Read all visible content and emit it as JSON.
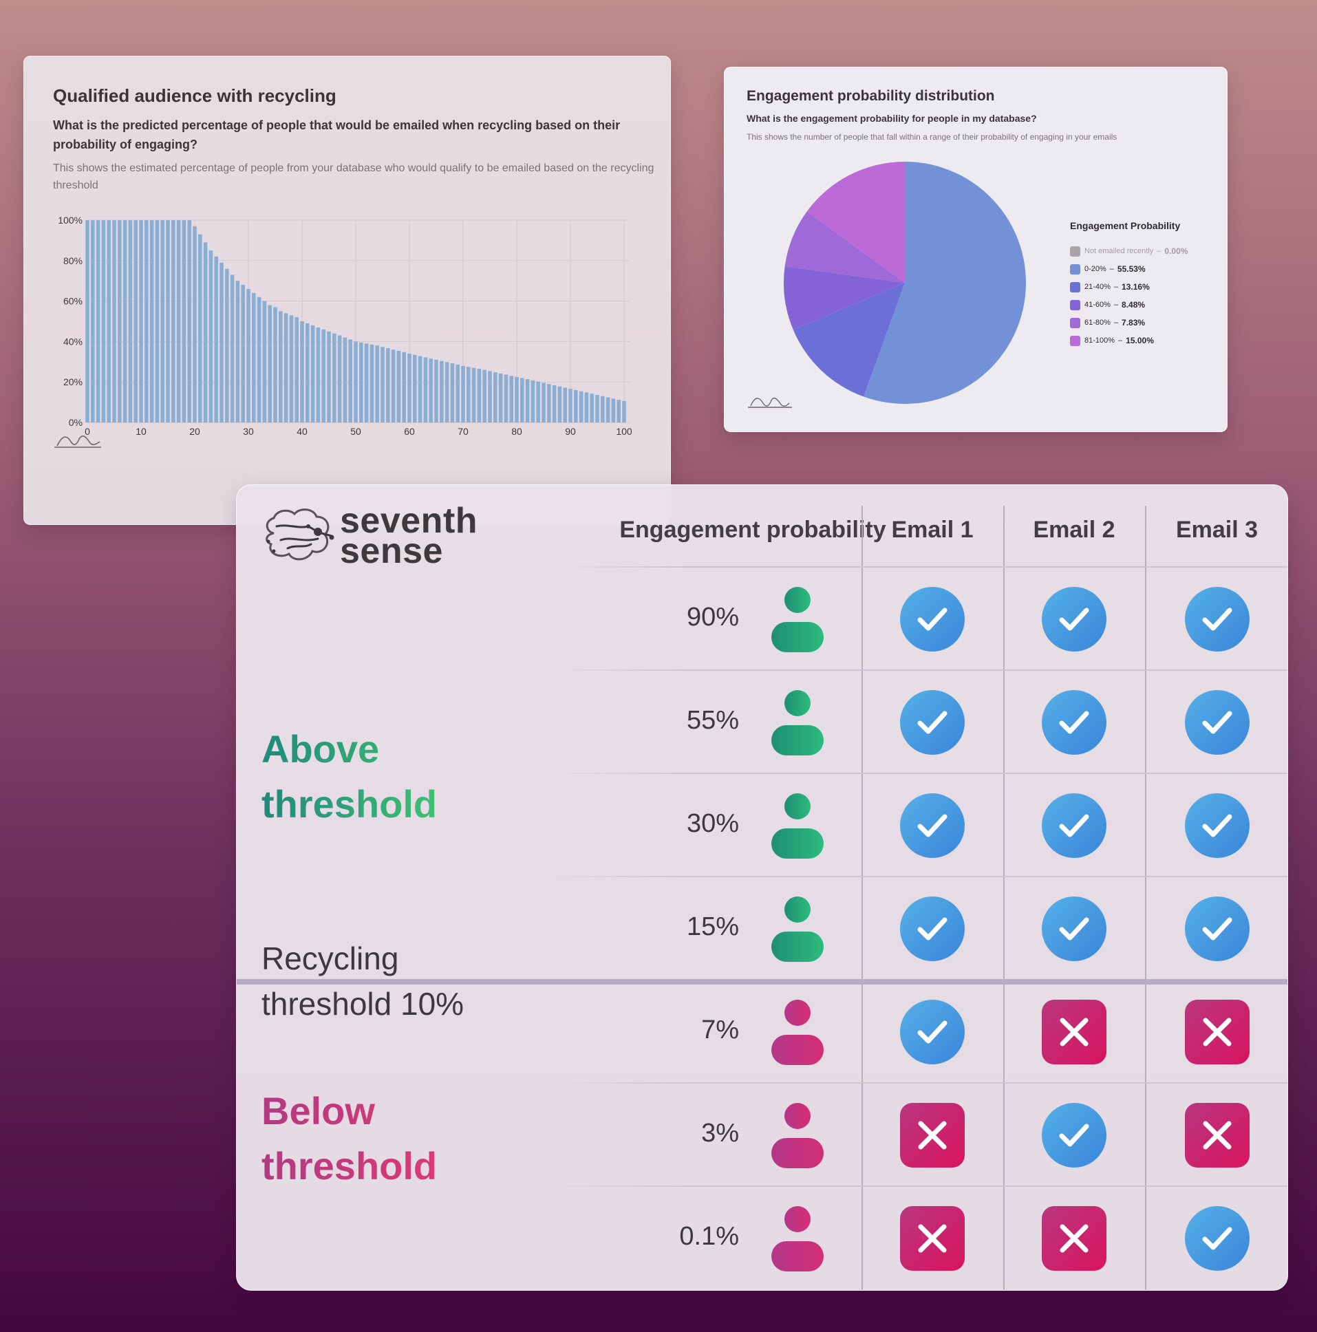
{
  "bar_card": {
    "title": "Qualified audience with recycling",
    "question": "What is the predicted percentage of people that would be emailed when recycling based on their probability of engaging?",
    "description": "This shows the estimated percentage of people from your database who would qualify to be emailed based on the recycling threshold"
  },
  "pie_card": {
    "title": "Engagement probability distribution",
    "question": "What is the engagement probability for people in my database?",
    "description": "This shows the number of people that fall within a range of their probability of engaging in your emails",
    "legend_title": "Engagement Probability",
    "legend": [
      {
        "label": "Not emailed recently",
        "value": "0.00%",
        "color": "#a9a5a8"
      },
      {
        "label": "0-20%",
        "value": "55.53%",
        "color": "#7391d6"
      },
      {
        "label": "21-40%",
        "value": "13.16%",
        "color": "#6c6fd6"
      },
      {
        "label": "41-60%",
        "value": "8.48%",
        "color": "#8463d6"
      },
      {
        "label": "61-80%",
        "value": "7.83%",
        "color": "#9f6ad8"
      },
      {
        "label": "81-100%",
        "value": "15.00%",
        "color": "#bb6ad8"
      }
    ]
  },
  "table": {
    "logo_line1": "seventh",
    "logo_line2": "sense",
    "header_prob": "Engagement probability",
    "headers": [
      "Email 1",
      "Email 2",
      "Email 3"
    ],
    "label_above_1": "Above",
    "label_above_2": "threshold",
    "label_recycle_1": "Recycling",
    "label_recycle_2": "threshold 10%",
    "label_below_1": "Below",
    "label_below_2": "threshold",
    "rows": [
      {
        "pct": "90%",
        "group": "above",
        "emails": [
          "check",
          "check",
          "check"
        ]
      },
      {
        "pct": "55%",
        "group": "above",
        "emails": [
          "check",
          "check",
          "check"
        ]
      },
      {
        "pct": "30%",
        "group": "above",
        "emails": [
          "check",
          "check",
          "check"
        ]
      },
      {
        "pct": "15%",
        "group": "above",
        "emails": [
          "check",
          "check",
          "check"
        ]
      },
      {
        "pct": "7%",
        "group": "below",
        "emails": [
          "check",
          "cross",
          "cross"
        ]
      },
      {
        "pct": "3%",
        "group": "below",
        "emails": [
          "cross",
          "check",
          "cross"
        ]
      },
      {
        "pct": "0.1%",
        "group": "below",
        "emails": [
          "cross",
          "cross",
          "check"
        ]
      }
    ]
  },
  "colors": {
    "bar": "#8aaed3",
    "above_icon": "#2dbb7e",
    "below_icon": "#d42f74",
    "check_badge": "#3a85da",
    "cross_badge": "#d8145e"
  },
  "chart_data": [
    {
      "type": "bar",
      "title": "Qualified audience with recycling",
      "xlabel": "",
      "ylabel": "",
      "xlim": [
        0,
        100
      ],
      "ylim": [
        0,
        100
      ],
      "x_ticks": [
        0,
        10,
        20,
        30,
        40,
        50,
        60,
        70,
        80,
        90,
        100
      ],
      "y_ticks": [
        "0%",
        "20%",
        "40%",
        "60%",
        "80%",
        "100%"
      ],
      "grid": true,
      "x": [
        0,
        1,
        2,
        3,
        4,
        5,
        6,
        7,
        8,
        9,
        10,
        11,
        12,
        13,
        14,
        15,
        16,
        17,
        18,
        19,
        20,
        21,
        22,
        23,
        24,
        25,
        26,
        27,
        28,
        29,
        30,
        31,
        32,
        33,
        34,
        35,
        36,
        37,
        38,
        39,
        40,
        41,
        42,
        43,
        44,
        45,
        46,
        47,
        48,
        49,
        50,
        51,
        52,
        53,
        54,
        55,
        56,
        57,
        58,
        59,
        60,
        61,
        62,
        63,
        64,
        65,
        66,
        67,
        68,
        69,
        70,
        71,
        72,
        73,
        74,
        75,
        76,
        77,
        78,
        79,
        80,
        81,
        82,
        83,
        84,
        85,
        86,
        87,
        88,
        89,
        90,
        91,
        92,
        93,
        94,
        95,
        96,
        97,
        98,
        99,
        100
      ],
      "values": [
        100,
        100,
        100,
        100,
        100,
        100,
        100,
        100,
        100,
        100,
        100,
        100,
        100,
        100,
        100,
        100,
        100,
        100,
        100,
        100,
        97,
        93,
        89,
        85,
        82,
        79,
        76,
        73,
        70,
        68,
        66,
        64,
        62,
        60,
        58,
        57,
        55,
        54,
        53,
        52,
        50,
        49,
        48,
        47,
        46,
        45,
        44,
        43,
        42,
        41,
        40,
        39.5,
        39,
        38.5,
        38,
        37.3,
        36.7,
        36,
        35.4,
        34.8,
        34,
        33.4,
        32.8,
        32.2,
        31.6,
        31,
        30.4,
        29.8,
        29.2,
        28.6,
        28,
        27.5,
        27,
        26.5,
        26,
        25.4,
        24.8,
        24.2,
        23.6,
        23,
        22.5,
        22,
        21.4,
        20.8,
        20.2,
        19.6,
        19,
        18.4,
        17.8,
        17.2,
        16.6,
        16,
        15.4,
        14.8,
        14.2,
        13.6,
        13,
        12.4,
        11.8,
        11.2,
        10.6
      ]
    },
    {
      "type": "pie",
      "title": "Engagement probability distribution",
      "labels": [
        "Not emailed recently",
        "0-20%",
        "21-40%",
        "41-60%",
        "61-80%",
        "81-100%"
      ],
      "values": [
        0.0,
        55.53,
        13.16,
        8.48,
        7.83,
        15.0
      ],
      "colors": [
        "#a9a5a8",
        "#7391d6",
        "#6c6fd6",
        "#8463d6",
        "#9f6ad8",
        "#bb6ad8"
      ],
      "legend_title": "Engagement Probability",
      "legend_position": "right"
    }
  ]
}
